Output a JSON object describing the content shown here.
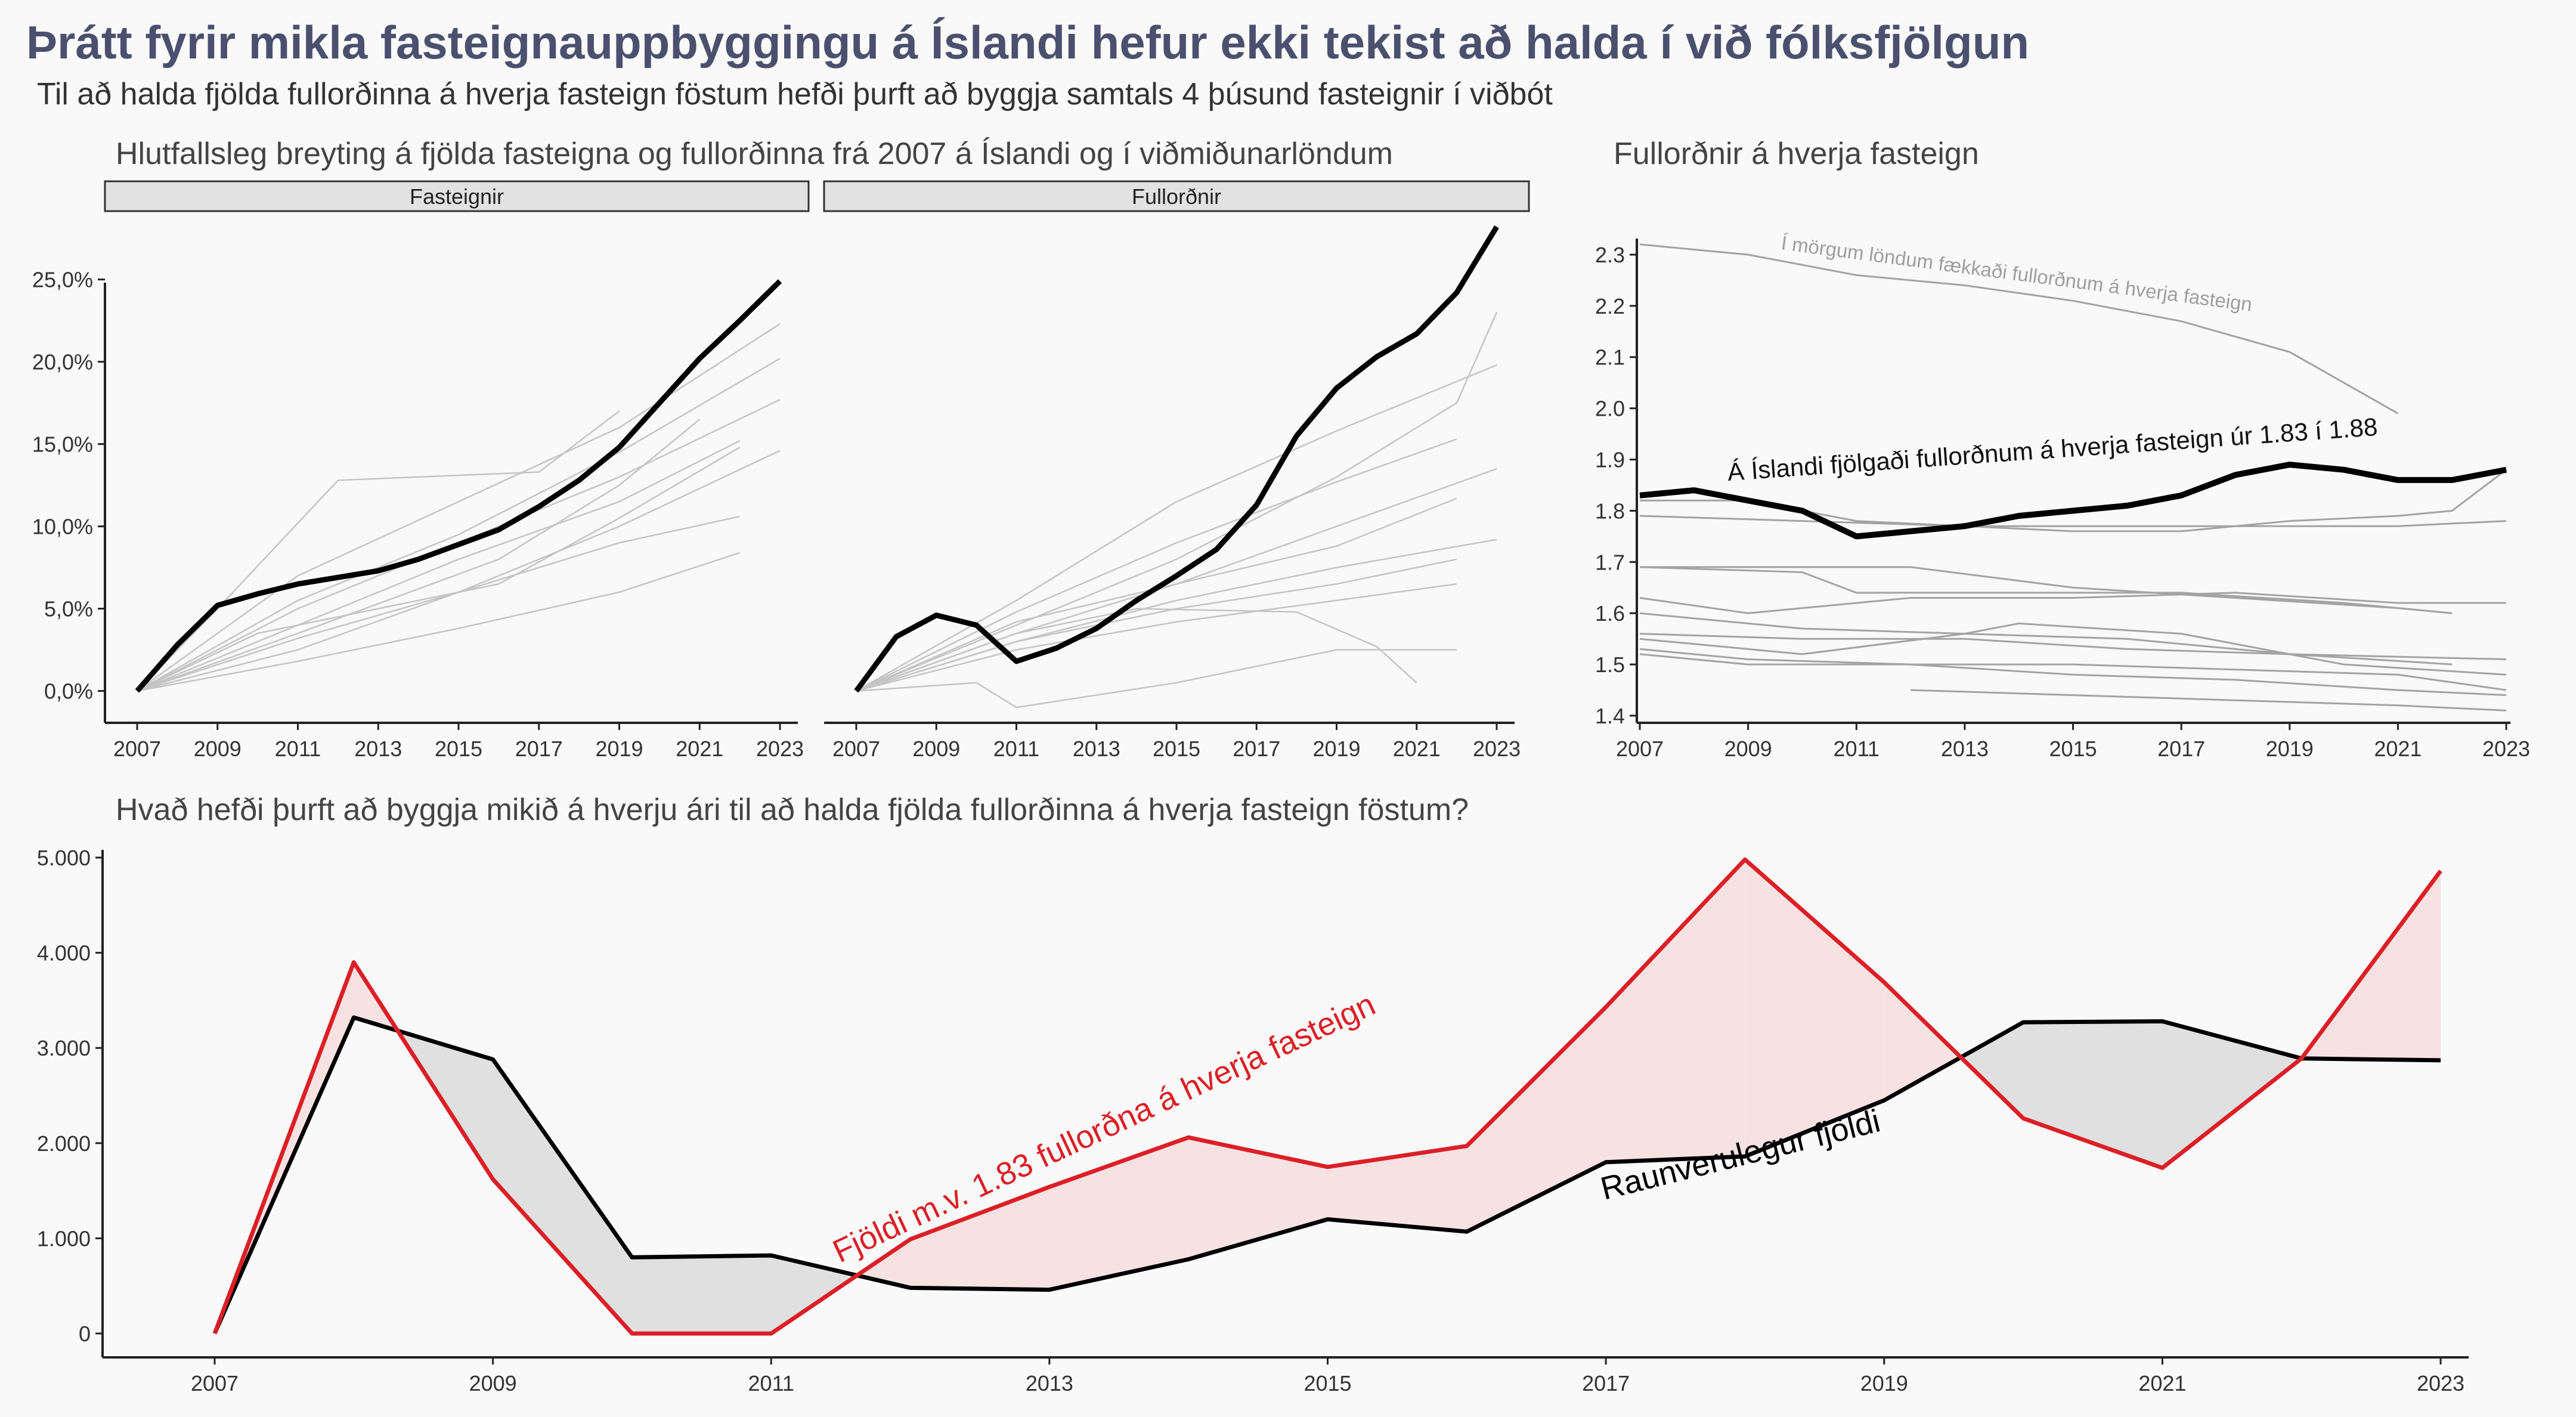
{
  "title": "Þrátt fyrir mikla fasteignauppbyggingu á Íslandi hefur ekki tekist að halda í við fólksfjölgun",
  "subtitle": "Til að halda fjölda fullorðinna á hverja fasteign föstum hefði þurft að byggja samtals 4 þúsund fasteignir í viðbót",
  "colors": {
    "iceland": "#000000",
    "comparison": "#c4c4c4",
    "needed": "#dc1f26",
    "fill_pink": "#f7e2e2",
    "fill_grey": "#e0e0e0",
    "strip": "#e2e2e2"
  },
  "chart_data": [
    {
      "type": "line",
      "title": "Hlutfallsleg breyting á fjölda fasteigna og fullorðinna frá 2007 á Íslandi og í viðmiðunarlöndum",
      "facets": [
        "Fasteignir",
        "Fullorðnir"
      ],
      "x_ticks": [
        "2007",
        "2009",
        "2011",
        "2013",
        "2015",
        "2017",
        "2019",
        "2021",
        "2023"
      ],
      "y_ticks": [
        "0,0%",
        "5,0%",
        "10,0%",
        "15,0%",
        "20,0%",
        "25,0%"
      ],
      "xlim": [
        2007,
        2023
      ],
      "ylim": [
        -1.5,
        28.5
      ],
      "panels": [
        {
          "name": "Fasteignir",
          "iceland": {
            "x": [
              2007,
              2008,
              2009,
              2010,
              2011,
              2012,
              2013,
              2014,
              2015,
              2016,
              2017,
              2018,
              2019,
              2020,
              2021,
              2022,
              2023
            ],
            "y": [
              0,
              2.8,
              5.2,
              5.9,
              6.5,
              6.9,
              7.3,
              8.0,
              8.9,
              9.8,
              11.2,
              12.8,
              14.8,
              17.5,
              20.2,
              22.5,
              24.9
            ]
          },
          "comparison": [
            {
              "x": [
                2007,
                2009,
                2012,
                2017,
                2019
              ],
              "y": [
                0,
                5.0,
                12.8,
                13.3,
                17.0
              ]
            },
            {
              "x": [
                2007,
                2011,
                2015,
                2019,
                2023
              ],
              "y": [
                0,
                7.0,
                11.5,
                16.0,
                22.3
              ]
            },
            {
              "x": [
                2007,
                2011,
                2015,
                2019,
                2023
              ],
              "y": [
                0,
                5.5,
                9.5,
                14.5,
                20.2
              ]
            },
            {
              "x": [
                2007,
                2011,
                2015,
                2019,
                2023
              ],
              "y": [
                0,
                5.0,
                9.0,
                13.0,
                17.7
              ]
            },
            {
              "x": [
                2007,
                2011,
                2015,
                2019,
                2022
              ],
              "y": [
                0,
                4.0,
                8.0,
                11.5,
                15.2
              ]
            },
            {
              "x": [
                2007,
                2011,
                2016,
                2019,
                2021
              ],
              "y": [
                0,
                3.5,
                8.0,
                12.5,
                16.5
              ]
            },
            {
              "x": [
                2007,
                2010,
                2016,
                2019,
                2022
              ],
              "y": [
                0,
                3.5,
                6.5,
                10.5,
                14.8
              ]
            },
            {
              "x": [
                2007,
                2011,
                2015,
                2019,
                2023
              ],
              "y": [
                0,
                3.2,
                6.0,
                10.0,
                14.6
              ]
            },
            {
              "x": [
                2007,
                2011,
                2015,
                2019,
                2022
              ],
              "y": [
                0,
                2.5,
                6.0,
                9.0,
                10.6
              ]
            },
            {
              "x": [
                2007,
                2011,
                2015,
                2019,
                2022
              ],
              "y": [
                0,
                1.8,
                3.8,
                6.0,
                8.4
              ]
            }
          ]
        },
        {
          "name": "Fullorðnir",
          "iceland": {
            "x": [
              2007,
              2008,
              2009,
              2010,
              2011,
              2012,
              2013,
              2014,
              2015,
              2016,
              2017,
              2018,
              2019,
              2020,
              2021,
              2022,
              2023
            ],
            "y": [
              0,
              3.3,
              4.6,
              4.0,
              1.8,
              2.6,
              3.8,
              5.5,
              7.0,
              8.6,
              11.3,
              15.5,
              18.4,
              20.3,
              21.7,
              24.2,
              28.2
            ]
          },
          "comparison": [
            {
              "x": [
                2007,
                2011,
                2015,
                2019,
                2022,
                2023
              ],
              "y": [
                0,
                4.0,
                8.0,
                13.0,
                17.5,
                23.0
              ]
            },
            {
              "x": [
                2007,
                2011,
                2015,
                2019,
                2023
              ],
              "y": [
                0,
                5.5,
                11.5,
                15.8,
                19.8
              ]
            },
            {
              "x": [
                2007,
                2011,
                2015,
                2019,
                2022
              ],
              "y": [
                0,
                4.8,
                9.0,
                12.7,
                15.3
              ]
            },
            {
              "x": [
                2007,
                2011,
                2015,
                2019,
                2023
              ],
              "y": [
                0,
                3.5,
                6.5,
                10.0,
                13.5
              ]
            },
            {
              "x": [
                2007,
                2011,
                2015,
                2019,
                2022
              ],
              "y": [
                0,
                4.2,
                6.5,
                8.8,
                11.7
              ]
            },
            {
              "x": [
                2007,
                2011,
                2015,
                2019,
                2023
              ],
              "y": [
                0,
                3.0,
                5.5,
                7.5,
                9.2
              ]
            },
            {
              "x": [
                2007,
                2011,
                2015,
                2019,
                2022
              ],
              "y": [
                0,
                3.0,
                5.0,
                6.5,
                8.0
              ]
            },
            {
              "x": [
                2007,
                2011,
                2015,
                2019,
                2022
              ],
              "y": [
                0,
                2.5,
                4.2,
                5.5,
                6.5
              ]
            },
            {
              "x": [
                2007,
                2011,
                2014,
                2018,
                2020,
                2021
              ],
              "y": [
                0,
                3.5,
                5.0,
                4.8,
                2.7,
                0.5
              ]
            },
            {
              "x": [
                2007,
                2010,
                2011,
                2015,
                2019,
                2022
              ],
              "y": [
                0,
                0.5,
                -1.0,
                0.5,
                2.5,
                2.5
              ]
            }
          ]
        }
      ]
    },
    {
      "type": "line",
      "title": "Fullorðnir á hverja fasteign",
      "x_ticks": [
        "2007",
        "2009",
        "2011",
        "2013",
        "2015",
        "2017",
        "2019",
        "2021",
        "2023"
      ],
      "y_ticks": [
        "1.4",
        "1.5",
        "1.6",
        "1.7",
        "1.8",
        "1.9",
        "2.0",
        "2.1",
        "2.2",
        "2.3"
      ],
      "xlim": [
        2007,
        2023
      ],
      "ylim": [
        1.4,
        2.33
      ],
      "annotations": [
        "Í mörgum löndum fækkaði fullorðnum á hverja fasteign",
        "Á Íslandi fjölgaði fullorðnum á hverja fasteign úr 1.83 í 1.88"
      ],
      "iceland": {
        "x": [
          2007,
          2008,
          2009,
          2010,
          2011,
          2012,
          2013,
          2014,
          2015,
          2016,
          2017,
          2018,
          2019,
          2020,
          2021,
          2022,
          2023
        ],
        "y": [
          1.83,
          1.84,
          1.82,
          1.8,
          1.75,
          1.76,
          1.77,
          1.79,
          1.8,
          1.81,
          1.83,
          1.87,
          1.89,
          1.88,
          1.86,
          1.86,
          1.88
        ]
      },
      "comparison": [
        {
          "x": [
            2007,
            2009,
            2011,
            2013,
            2015,
            2017,
            2019,
            2021
          ],
          "y": [
            2.32,
            2.3,
            2.26,
            2.24,
            2.21,
            2.17,
            2.11,
            1.99
          ]
        },
        {
          "x": [
            2007,
            2009,
            2011,
            2013,
            2015,
            2017,
            2019,
            2021,
            2022,
            2023
          ],
          "y": [
            1.82,
            1.82,
            1.78,
            1.77,
            1.76,
            1.76,
            1.78,
            1.79,
            1.8,
            1.88
          ]
        },
        {
          "x": [
            2007,
            2010,
            2013,
            2016,
            2019,
            2021,
            2023
          ],
          "y": [
            1.79,
            1.78,
            1.77,
            1.77,
            1.77,
            1.77,
            1.78
          ]
        },
        {
          "x": [
            2007,
            2010,
            2012,
            2015,
            2018,
            2021,
            2022
          ],
          "y": [
            1.69,
            1.69,
            1.69,
            1.65,
            1.63,
            1.61,
            1.6
          ]
        },
        {
          "x": [
            2007,
            2010,
            2011,
            2014,
            2017,
            2020,
            2022
          ],
          "y": [
            1.69,
            1.68,
            1.64,
            1.64,
            1.64,
            1.62,
            1.6
          ]
        },
        {
          "x": [
            2007,
            2009,
            2012,
            2015,
            2018,
            2021,
            2023
          ],
          "y": [
            1.63,
            1.6,
            1.63,
            1.63,
            1.64,
            1.62,
            1.62
          ]
        },
        {
          "x": [
            2007,
            2010,
            2013,
            2016,
            2019,
            2022
          ],
          "y": [
            1.6,
            1.57,
            1.56,
            1.55,
            1.52,
            1.5
          ]
        },
        {
          "x": [
            2007,
            2010,
            2013,
            2016,
            2019,
            2023
          ],
          "y": [
            1.56,
            1.55,
            1.55,
            1.53,
            1.52,
            1.51
          ]
        },
        {
          "x": [
            2007,
            2010,
            2013,
            2014,
            2017,
            2020,
            2023
          ],
          "y": [
            1.55,
            1.52,
            1.56,
            1.58,
            1.56,
            1.5,
            1.48
          ]
        },
        {
          "x": [
            2007,
            2009,
            2012,
            2015,
            2018,
            2021,
            2023
          ],
          "y": [
            1.53,
            1.51,
            1.5,
            1.5,
            1.49,
            1.48,
            1.45
          ]
        },
        {
          "x": [
            2007,
            2009,
            2012,
            2015,
            2018,
            2021,
            2023
          ],
          "y": [
            1.52,
            1.5,
            1.5,
            1.48,
            1.47,
            1.45,
            1.44
          ]
        },
        {
          "x": [
            2012,
            2015,
            2018,
            2021,
            2023
          ],
          "y": [
            1.45,
            1.44,
            1.43,
            1.42,
            1.41
          ]
        }
      ]
    },
    {
      "type": "line",
      "title": "Hvað hefði þurft að byggja mikið á hverju ári til að halda fjölda fullorðinna á hverja fasteign föstum?",
      "x_ticks": [
        "2007",
        "2009",
        "2011",
        "2013",
        "2015",
        "2017",
        "2019",
        "2021",
        "2023"
      ],
      "y_ticks": [
        "0",
        "1.000",
        "2.000",
        "3.000",
        "4.000",
        "5.000"
      ],
      "xlim": [
        2007,
        2023
      ],
      "ylim": [
        0,
        5000
      ],
      "x": [
        2007,
        2008,
        2009,
        2010,
        2011,
        2012,
        2013,
        2014,
        2015,
        2016,
        2017,
        2018,
        2019,
        2020,
        2021,
        2022,
        2023
      ],
      "series": [
        {
          "name": "Raunverulegur fjöldi",
          "values": [
            0,
            3320,
            2880,
            800,
            820,
            480,
            460,
            780,
            1200,
            1070,
            1800,
            1860,
            2450,
            3270,
            3280,
            2890,
            2870
          ]
        },
        {
          "name": "Fjöldi m.v. 1.83 fullorðna á hverja fasteign",
          "values": [
            0,
            3900,
            1620,
            0,
            0,
            990,
            1540,
            2060,
            1750,
            1970,
            3430,
            4980,
            3690,
            2260,
            1740,
            2890,
            4860
          ]
        }
      ]
    }
  ]
}
